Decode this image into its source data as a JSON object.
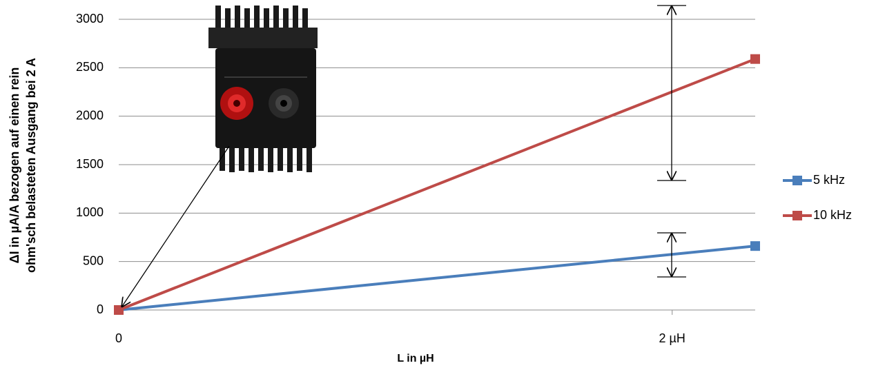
{
  "chart_data": {
    "type": "line",
    "x_label": "L in µH",
    "y_label": [
      "ΔI in µA/A bezogen auf einen rein",
      "ohm'sch belasteten Ausgang bei 2 A"
    ],
    "x": [
      0,
      2.3
    ],
    "series": [
      {
        "name": "5 kHz",
        "color": "#4a7ebb",
        "values": [
          0,
          660
        ]
      },
      {
        "name": "10 kHz",
        "color": "#be4b48",
        "values": [
          0,
          2590
        ]
      }
    ],
    "xlim": [
      0,
      2.3
    ],
    "xticks": [
      0,
      {
        "value": 2,
        "label": "2 µH"
      }
    ],
    "ylim": [
      0,
      3000
    ],
    "yticks": [
      0,
      500,
      1000,
      1500,
      2000,
      2500,
      3000
    ],
    "grid": true,
    "legend": "right"
  }
}
